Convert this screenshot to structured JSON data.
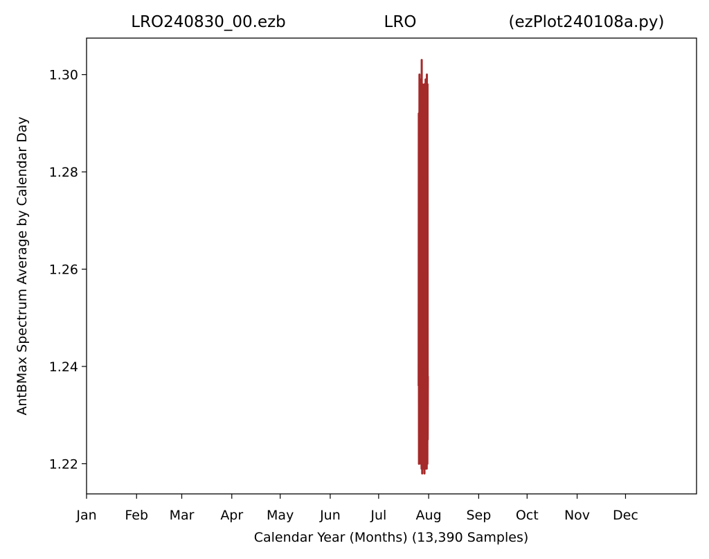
{
  "colors": {
    "series": "#a52a2a",
    "axis": "#000000",
    "background": "#ffffff"
  },
  "chart_data": {
    "type": "line",
    "title_parts": [
      "LRO240830_00.ezb",
      "LRO",
      "(ezPlot240108a.py)"
    ],
    "xlabel": "Calendar Year (Months) (13,390 Samples)",
    "ylabel": "AntBMax Spectrum Average by Calendar Day",
    "x_ticks": [
      {
        "day": 0,
        "label": "Jan"
      },
      {
        "day": 31,
        "label": "Feb"
      },
      {
        "day": 59,
        "label": "Mar"
      },
      {
        "day": 90,
        "label": "Apr"
      },
      {
        "day": 120,
        "label": "May"
      },
      {
        "day": 151,
        "label": "Jun"
      },
      {
        "day": 181,
        "label": "Jul"
      },
      {
        "day": 212,
        "label": "Aug"
      },
      {
        "day": 243,
        "label": "Sep"
      },
      {
        "day": 273,
        "label": "Oct"
      },
      {
        "day": 304,
        "label": "Nov"
      },
      {
        "day": 334,
        "label": "Dec"
      }
    ],
    "xlim": [
      0,
      378
    ],
    "ylim": [
      1.2138,
      1.3075
    ],
    "y_ticks": [
      1.22,
      1.24,
      1.26,
      1.28,
      1.3
    ],
    "y_tick_labels": [
      "1.22",
      "1.24",
      "1.26",
      "1.28",
      "1.30"
    ],
    "grid": false,
    "series": [
      {
        "color": "#a52a2a",
        "x": [
          205.8,
          205.9,
          206.0,
          206.1,
          206.2,
          206.3,
          206.4,
          206.5,
          206.6,
          206.7,
          206.8,
          206.9,
          207.0,
          207.1,
          207.2,
          207.3,
          207.4,
          207.5,
          207.6,
          207.7,
          207.8,
          207.9,
          208.0,
          208.1,
          208.2,
          208.3,
          208.4,
          208.5,
          208.6,
          208.7,
          208.8,
          208.9,
          209.0,
          209.1,
          209.2,
          209.3,
          209.4,
          209.5,
          209.6,
          209.7,
          209.8,
          209.9,
          210.0,
          210.1,
          210.2,
          210.3,
          210.4,
          210.5,
          210.6,
          210.7,
          210.8,
          210.9,
          211.0,
          211.1,
          211.2,
          211.3,
          211.4,
          211.5
        ],
        "y": [
          1.236,
          1.292,
          1.22,
          1.287,
          1.225,
          1.3,
          1.221,
          1.295,
          1.224,
          1.299,
          1.222,
          1.288,
          1.226,
          1.297,
          1.22,
          1.29,
          1.223,
          1.296,
          1.219,
          1.303,
          1.221,
          1.293,
          1.218,
          1.298,
          1.224,
          1.285,
          1.22,
          1.297,
          1.222,
          1.289,
          1.219,
          1.295,
          1.223,
          1.286,
          1.221,
          1.298,
          1.218,
          1.291,
          1.225,
          1.296,
          1.22,
          1.288,
          1.222,
          1.299,
          1.219,
          1.29,
          1.223,
          1.297,
          1.221,
          1.287,
          1.219,
          1.3,
          1.222,
          1.285,
          1.22,
          1.298,
          1.225,
          1.238
        ]
      }
    ]
  }
}
